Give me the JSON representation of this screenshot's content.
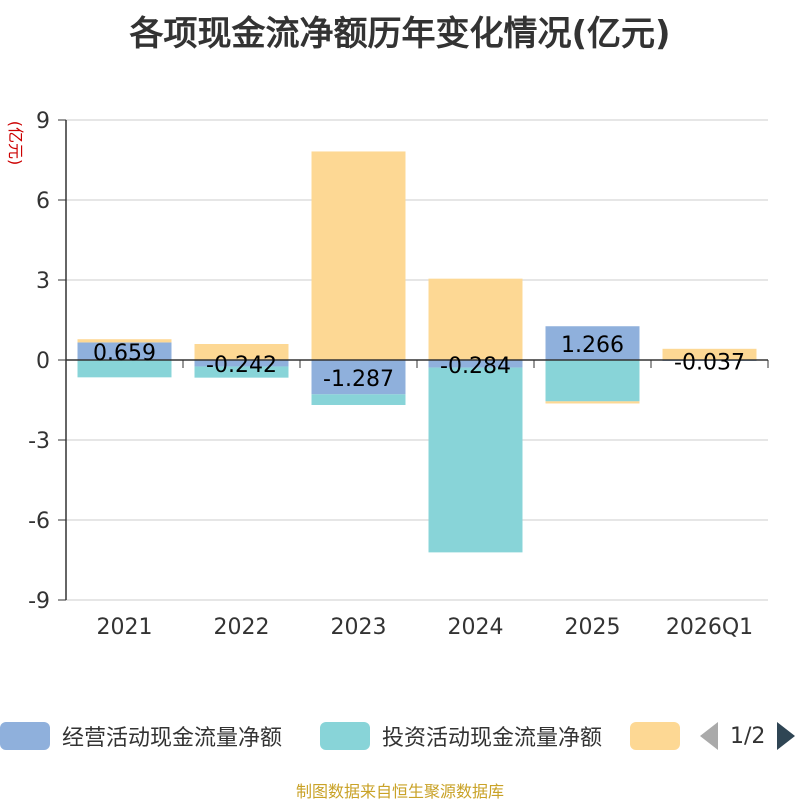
{
  "chart_data": {
    "type": "bar",
    "stacked": true,
    "title": "各项现金流净额历年变化情况(亿元)",
    "ylabel": "(亿元)",
    "categories": [
      "2021",
      "2022",
      "2023",
      "2024",
      "2025",
      "2026Q1"
    ],
    "y_ticks": [
      "9",
      "6",
      "3",
      "0",
      "-3",
      "-6",
      "-9"
    ],
    "ylim": [
      -9,
      9
    ],
    "grid": true,
    "legend_position": "bottom",
    "series": [
      {
        "name": "经营活动现金流量净额",
        "color": "#8fb0dc",
        "values": [
          0.659,
          -0.242,
          -1.287,
          -0.284,
          1.266,
          -0.037
        ],
        "labels": [
          "0.659",
          "-0.242",
          "-1.287",
          "-0.284",
          "1.266",
          "-0.037"
        ]
      },
      {
        "name": "投资活动现金流量净额",
        "color": "#88d4d8",
        "values": [
          -0.65,
          -0.42,
          -0.4,
          -6.93,
          -1.55,
          0.0
        ]
      },
      {
        "name": "",
        "color": "#fdd894",
        "values": [
          0.12,
          0.6,
          7.82,
          3.05,
          -0.08,
          0.42
        ]
      }
    ]
  },
  "legend": {
    "pager_text": "1/2"
  },
  "source_note": "制图数据来自恒生聚源数据库"
}
